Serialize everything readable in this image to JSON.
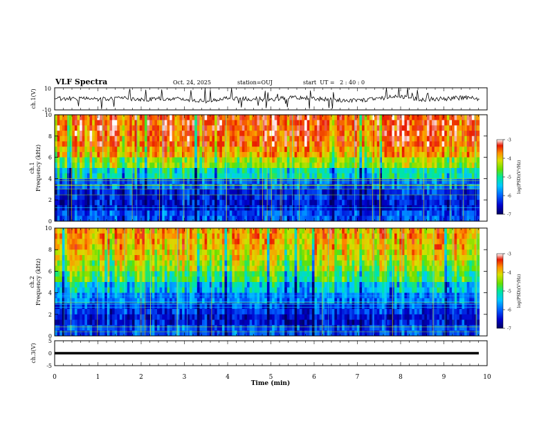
{
  "header": {
    "title": "VLF Spectra",
    "date": "Oct. 24, 2025",
    "station": "station=OUJ",
    "start_ut": "start  UT =   2 : 40 : 0"
  },
  "colors": {
    "colormap": [
      "#000060",
      "#0000cc",
      "#0060ff",
      "#00c8ff",
      "#00e89a",
      "#66e000",
      "#d8e000",
      "#ff9000",
      "#e81800",
      "#ffffff"
    ]
  },
  "chart_data": [
    {
      "type": "line",
      "name": "ch1-waveform",
      "ylabel": "ch.1(V)",
      "ylim": [
        -10,
        10
      ],
      "y_tick_labels": [
        "10",
        "-10"
      ],
      "x": [
        0,
        0.5,
        1.0,
        1.5,
        2.0,
        2.5,
        3.0,
        3.5,
        4.0,
        4.5,
        5.0,
        5.5,
        6.0,
        6.5,
        7.0,
        7.5,
        8.0,
        8.5,
        9.0,
        9.5,
        9.82
      ],
      "y": [
        0,
        0.5,
        -0.5,
        1,
        -1,
        0.5,
        -0.5,
        -2,
        1,
        0,
        -0.5,
        1,
        0.5,
        -1,
        -1.5,
        0.5,
        2,
        -0.5,
        0,
        1,
        0
      ]
    },
    {
      "type": "heatmap",
      "name": "ch1-spectrogram",
      "ylabel": "Frequency (kHz)",
      "channel_label": "ch.1",
      "ylim": [
        0,
        10
      ],
      "y_tick_labels": [
        "0",
        "2",
        "4",
        "6",
        "8",
        "10"
      ],
      "colorbar": {
        "label": "log(PSD)(V²/Hz)",
        "range": [
          -7,
          -3
        ],
        "tick_labels": [
          "-3",
          "-4",
          "-5",
          "-6",
          "-7"
        ]
      },
      "frequency_bands_kHz": [
        0,
        1,
        2,
        3,
        4,
        5,
        6,
        7,
        8,
        9,
        10
      ],
      "mean_log_psd": [
        -6.2,
        -6.5,
        -6.4,
        -6.1,
        -5.4,
        -4.6,
        -4.0,
        -3.7,
        -3.6,
        -3.6
      ]
    },
    {
      "type": "heatmap",
      "name": "ch2-spectrogram",
      "ylabel": "Frequency (kHz)",
      "channel_label": "ch.2",
      "ylim": [
        0,
        10
      ],
      "y_tick_labels": [
        "0",
        "2",
        "4",
        "6",
        "8",
        "10"
      ],
      "colorbar": {
        "label": "log(PSD)(V²/Hz)",
        "range": [
          -7,
          -3
        ],
        "tick_labels": [
          "-3",
          "-4",
          "-5",
          "-6",
          "-7"
        ]
      },
      "frequency_bands_kHz": [
        0,
        1,
        2,
        3,
        4,
        5,
        6,
        7,
        8,
        9,
        10
      ],
      "mean_log_psd": [
        -6.2,
        -6.5,
        -6.3,
        -6.0,
        -5.6,
        -5.0,
        -4.6,
        -4.3,
        -4.1,
        -4.0
      ]
    },
    {
      "type": "line",
      "name": "ch3-waveform",
      "ylabel": "ch.3(V)",
      "ylim": [
        -5,
        5
      ],
      "y_tick_labels": [
        "5",
        "0",
        "-5"
      ],
      "x": [
        0,
        9.82
      ],
      "y": [
        0,
        0
      ]
    }
  ],
  "x_axis": {
    "label": "Time (min)",
    "range": [
      0,
      10
    ],
    "tick_labels": [
      "0",
      "1",
      "2",
      "3",
      "4",
      "5",
      "6",
      "7",
      "8",
      "9",
      "10"
    ],
    "data_end": 9.82
  }
}
